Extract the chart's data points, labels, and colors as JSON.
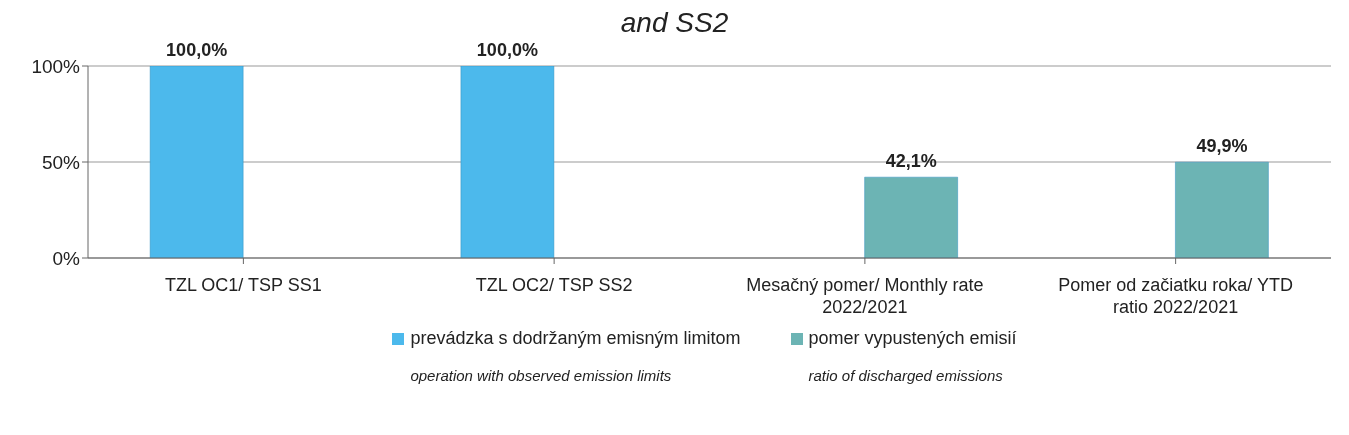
{
  "chart_data": {
    "type": "bar",
    "title": "and SS2",
    "categories": [
      "TZL OC1/ TSP SS1",
      "TZL OC2/ TSP SS2",
      "Mesačný pomer/ Monthly rate 2022/2021",
      "Pomer od začiatku roka/ YTD ratio 2022/2021"
    ],
    "series": [
      {
        "name": "prevádzka s dodržaným emisným limitom",
        "color": "#4cb9ec",
        "values": [
          100,
          100,
          null,
          null
        ],
        "value_labels": [
          "100,0%",
          "100,0%",
          null,
          null
        ]
      },
      {
        "name": "pomer vypustených emisií",
        "color": "#6cb4b4",
        "values": [
          null,
          null,
          42.1,
          49.9
        ],
        "value_labels": [
          null,
          null,
          "42,1%",
          "49,9%"
        ]
      }
    ],
    "ylim": [
      0,
      100
    ],
    "yticks": [
      {
        "value": 0,
        "label": "0%"
      },
      {
        "value": 50,
        "label": "50%"
      },
      {
        "value": 100,
        "label": "100%"
      }
    ],
    "grid": "y",
    "legend": "bottom",
    "annotations": [
      "operation with observed emission limits",
      "ratio of discharged emissions"
    ]
  }
}
